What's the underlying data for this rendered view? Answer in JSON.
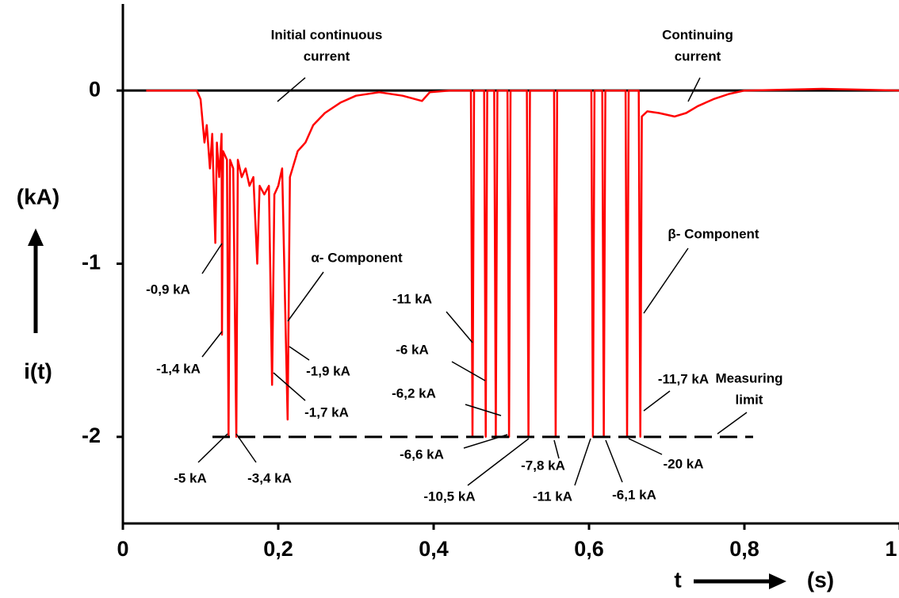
{
  "chart_data": {
    "type": "line",
    "ylabel": "i(t)",
    "yunit": "(kA)",
    "xlabel": "t",
    "xunit": "(s)",
    "xlim": [
      0,
      1
    ],
    "ylim": [
      -2.5,
      0.5
    ],
    "xticks": [
      0,
      {
        "value": 0.2,
        "label": "0,2"
      },
      {
        "value": 0.4,
        "label": "0,4"
      },
      {
        "value": 0.6,
        "label": "0,6"
      },
      {
        "value": 0.8,
        "label": "0,8"
      },
      1
    ],
    "yticks": [
      0,
      -1,
      -2
    ],
    "zero_line": true,
    "limit_line": -2,
    "series": [
      {
        "color": "#ff0000",
        "x": [
          0.03,
          0.095,
          0.1,
          0.105,
          0.108,
          0.112,
          0.115,
          0.119,
          0.121,
          0.124,
          0.127,
          0.1276,
          0.129,
          0.134,
          0.136,
          0.138,
          0.142,
          0.146,
          0.148,
          0.153,
          0.158,
          0.163,
          0.168,
          0.173,
          0.176,
          0.182,
          0.188,
          0.192,
          0.195,
          0.2,
          0.205,
          0.212,
          0.215,
          0.225,
          0.235,
          0.245,
          0.26,
          0.28,
          0.3,
          0.33,
          0.36,
          0.385,
          0.395,
          0.42,
          0.448,
          0.45,
          0.452,
          0.465,
          0.467,
          0.469,
          0.478,
          0.48,
          0.482,
          0.495,
          0.497,
          0.499,
          0.52,
          0.522,
          0.524,
          0.555,
          0.557,
          0.559,
          0.603,
          0.605,
          0.607,
          0.617,
          0.619,
          0.621,
          0.647,
          0.649,
          0.651,
          0.664,
          0.666,
          0.668,
          0.675,
          0.69,
          0.71,
          0.725,
          0.74,
          0.76,
          0.78,
          0.8,
          0.9,
          1
        ],
        "values": [
          0,
          0,
          -0.05,
          -0.3,
          -0.2,
          -0.45,
          -0.25,
          -0.88,
          -0.3,
          -0.5,
          -0.25,
          -1.41,
          -0.35,
          -0.4,
          -2,
          -0.4,
          -0.45,
          -2,
          -0.4,
          -0.5,
          -0.45,
          -0.55,
          -0.5,
          -1.0,
          -0.55,
          -0.6,
          -0.55,
          -1.7,
          -0.6,
          -0.55,
          -0.45,
          -1.9,
          -0.5,
          -0.35,
          -0.3,
          -0.2,
          -0.13,
          -0.07,
          -0.03,
          -0.01,
          -0.03,
          -0.06,
          -0.01,
          0,
          0,
          -2,
          0,
          0,
          -2,
          0,
          0,
          -2,
          0,
          0,
          -2,
          0,
          0,
          -2,
          0,
          0,
          -2,
          0,
          0,
          -2,
          0,
          0,
          -2,
          0,
          0,
          -2,
          0,
          0,
          -2,
          -0.15,
          -0.12,
          -0.13,
          -0.15,
          -0.13,
          -0.09,
          -0.05,
          -0.02,
          0,
          0.01,
          0
        ]
      }
    ],
    "annotations": [
      [
        "Initial continuous",
        "current"
      ],
      [
        "Continuing",
        "current"
      ],
      [
        "α- Component"
      ],
      [
        "β- Component"
      ],
      [
        "-0,9 kA"
      ],
      [
        "-1,4 kA"
      ],
      [
        "-5 kA"
      ],
      [
        "-3,4 kA"
      ],
      [
        "-1,7 kA"
      ],
      [
        "-1,9 kA"
      ],
      [
        "-11 kA"
      ],
      [
        "-6 kA"
      ],
      [
        "-6,2 kA"
      ],
      [
        "-6,6 kA"
      ],
      [
        "-10,5 kA"
      ],
      [
        "-7,8 kA"
      ],
      [
        "-11 kA"
      ],
      [
        "-6,1 kA"
      ],
      [
        "-20 kA"
      ],
      [
        "-11,7 kA"
      ],
      [
        "Measuring",
        "limit"
      ]
    ]
  }
}
